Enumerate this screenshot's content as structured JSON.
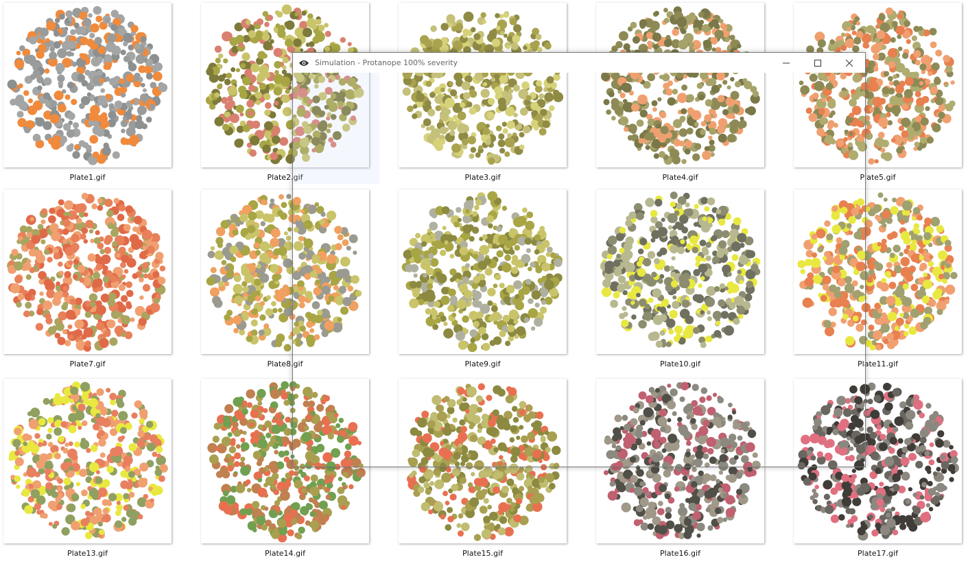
{
  "files": [
    {
      "name": "Plate1.gif"
    },
    {
      "name": "Plate2.gif"
    },
    {
      "name": "Plate3.gif"
    },
    {
      "name": "Plate4.gif"
    },
    {
      "name": "Plate5.gif"
    },
    {
      "name": "Plate7.gif"
    },
    {
      "name": "Plate8.gif"
    },
    {
      "name": "Plate9.gif"
    },
    {
      "name": "Plate10.gif"
    },
    {
      "name": "Plate11.gif"
    },
    {
      "name": "Plate13.gif"
    },
    {
      "name": "Plate14.gif"
    },
    {
      "name": "Plate15.gif"
    },
    {
      "name": "Plate16.gif"
    },
    {
      "name": "Plate17.gif"
    }
  ],
  "window": {
    "title": "Simulation - Protanope 100% severity"
  }
}
